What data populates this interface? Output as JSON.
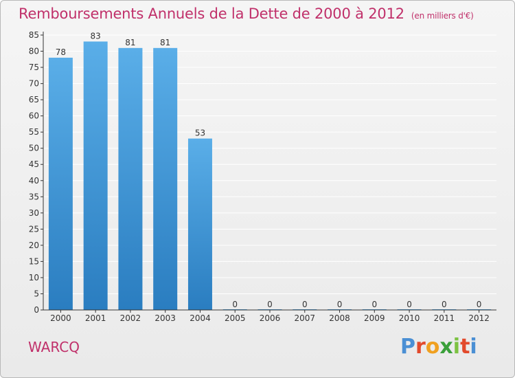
{
  "header": {
    "title": "Remboursements Annuels de la Dette de 2000 à 2012",
    "unit": "(en milliers d'€)"
  },
  "footer": {
    "commune": "WARCQ",
    "logo": "Proxiti"
  },
  "colors": {
    "title": "#c0306a",
    "bar_top": "#5aaee8",
    "bar_bottom": "#2a7dc0",
    "grid": "#ffffff"
  },
  "chart_data": {
    "type": "bar",
    "categories": [
      "2000",
      "2001",
      "2002",
      "2003",
      "2004",
      "2005",
      "2006",
      "2007",
      "2008",
      "2009",
      "2010",
      "2011",
      "2012"
    ],
    "values": [
      78,
      83,
      81,
      81,
      53,
      0,
      0,
      0,
      0,
      0,
      0,
      0,
      0
    ],
    "data_labels": [
      "78",
      "83",
      "81",
      "81",
      "53",
      "0",
      "0",
      "0",
      "0",
      "0",
      "0",
      "0",
      "0"
    ],
    "title": "Remboursements Annuels de la Dette de 2000 à 2012",
    "ylim": [
      0,
      85
    ],
    "yticks": [
      0,
      5,
      10,
      15,
      20,
      25,
      30,
      35,
      40,
      45,
      50,
      55,
      60,
      65,
      70,
      75,
      80,
      85
    ],
    "grid": true,
    "legend": "none"
  }
}
